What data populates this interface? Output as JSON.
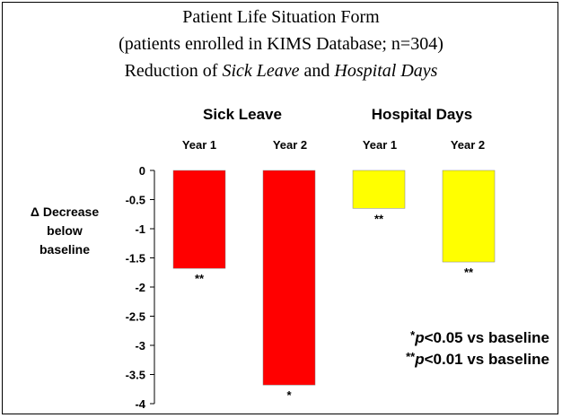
{
  "chart_data": {
    "type": "bar",
    "title_lines": [
      "Patient Life Situation Form",
      "(patients enrolled in KIMS Database; n=304)"
    ],
    "title_line3": {
      "prefix": "Reduction of ",
      "italic1": "Sick Leave",
      "middle": " and ",
      "italic2": "Hospital Days"
    },
    "ylabel_lines": [
      "Δ Decrease",
      "below",
      "baseline"
    ],
    "ylim": [
      -4,
      0
    ],
    "yticks": [
      "0",
      "-0.5",
      "-1",
      "-1.5",
      "-2",
      "-2.5",
      "-3",
      "-3.5",
      "-4"
    ],
    "groups": [
      {
        "label": "Sick Leave",
        "color": "#ff0000",
        "bars": [
          {
            "category": "Year 1",
            "value": -1.68,
            "significance": "**"
          },
          {
            "category": "Year 2",
            "value": -3.68,
            "significance": "*"
          }
        ]
      },
      {
        "label": "Hospital Days",
        "color": "#ffff00",
        "bars": [
          {
            "category": "Year 1",
            "value": -0.65,
            "significance": "**"
          },
          {
            "category": "Year 2",
            "value": -1.57,
            "significance": "**"
          }
        ]
      }
    ],
    "footnotes": [
      {
        "stars": "*",
        "p": "p",
        "text": "<0.05 vs baseline"
      },
      {
        "stars": "**",
        "p": "p",
        "text": "<0.01 vs baseline"
      }
    ],
    "grid": false,
    "legend": "none"
  }
}
